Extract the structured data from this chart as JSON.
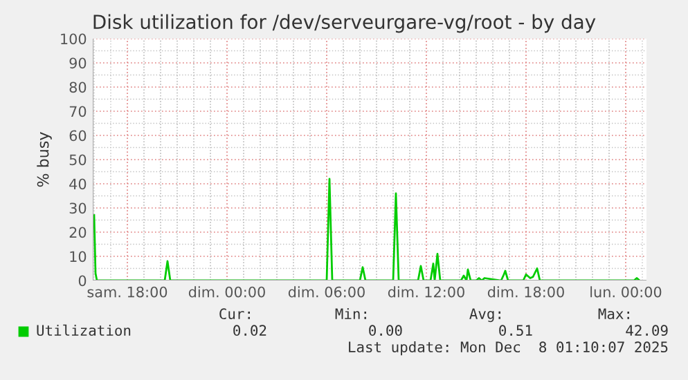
{
  "chart_data": {
    "type": "line",
    "title": "Disk utilization for /dev/serveurgare-vg/root - by day",
    "ylabel": "% busy",
    "x": [
      "2025-12-06T16:00",
      "2025-12-06T16:05",
      "2025-12-06T16:10",
      "2025-12-06T20:15",
      "2025-12-06T20:25",
      "2025-12-06T20:35",
      "2025-12-07T06:00",
      "2025-12-07T06:10",
      "2025-12-07T06:20",
      "2025-12-07T08:00",
      "2025-12-07T08:10",
      "2025-12-07T08:20",
      "2025-12-07T10:00",
      "2025-12-07T10:10",
      "2025-12-07T10:20",
      "2025-12-07T11:30",
      "2025-12-07T11:40",
      "2025-12-07T11:50",
      "2025-12-07T12:15",
      "2025-12-07T12:25",
      "2025-12-07T12:30",
      "2025-12-07T12:40",
      "2025-12-07T12:50",
      "2025-12-07T14:05",
      "2025-12-07T14:15",
      "2025-12-07T14:25",
      "2025-12-07T14:30",
      "2025-12-07T14:40",
      "2025-12-07T15:00",
      "2025-12-07T15:10",
      "2025-12-07T15:20",
      "2025-12-07T15:30",
      "2025-12-07T16:30",
      "2025-12-07T16:40",
      "2025-12-07T16:45",
      "2025-12-07T16:55",
      "2025-12-07T17:50",
      "2025-12-07T18:00",
      "2025-12-07T18:15",
      "2025-12-07T18:25",
      "2025-12-07T18:40",
      "2025-12-07T18:50",
      "2025-12-08T00:30",
      "2025-12-08T00:40",
      "2025-12-08T00:50"
    ],
    "series": [
      {
        "name": "Utilization",
        "color": "#00cc00",
        "values": [
          27,
          3,
          0,
          0,
          8,
          0,
          0,
          42,
          0,
          0,
          5.5,
          0,
          0,
          36,
          0,
          0,
          6,
          0,
          0,
          7,
          0,
          11,
          0,
          0,
          2,
          0,
          4.5,
          0,
          0,
          1,
          0,
          1,
          0,
          2.5,
          4,
          0,
          0,
          2.5,
          1,
          1.5,
          5,
          0,
          0,
          1,
          0
        ]
      }
    ],
    "xlim": [
      "2025-12-06T15:55",
      "2025-12-08T01:15"
    ],
    "xticks": [
      {
        "value": "2025-12-06T18:00",
        "label": "sam. 18:00"
      },
      {
        "value": "2025-12-07T00:00",
        "label": "dim. 00:00"
      },
      {
        "value": "2025-12-07T06:00",
        "label": "dim. 06:00"
      },
      {
        "value": "2025-12-07T12:00",
        "label": "dim. 12:00"
      },
      {
        "value": "2025-12-07T18:00",
        "label": "dim. 18:00"
      },
      {
        "value": "2025-12-08T00:00",
        "label": "lun. 00:00"
      }
    ],
    "ylim": [
      0,
      100
    ],
    "yticks": [
      0,
      10,
      20,
      30,
      40,
      50,
      60,
      70,
      80,
      90,
      100
    ],
    "grid": true,
    "legend": "bottom",
    "annotations": [
      "Cur:",
      "Min:",
      "Avg:",
      "Max:",
      "0.02",
      "0.00",
      "0.51",
      "42.09",
      "Last update: Mon Dec  8 01:10:07 2025"
    ]
  }
}
